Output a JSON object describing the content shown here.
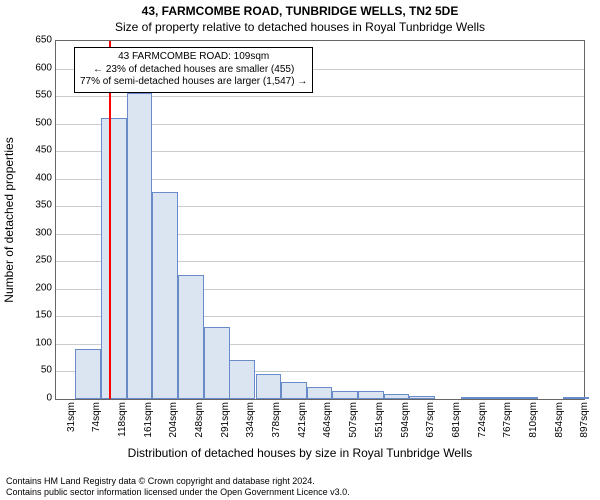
{
  "title_line1": "43, FARMCOMBE ROAD, TUNBRIDGE WELLS, TN2 5DE",
  "title_line2": "Size of property relative to detached houses in Royal Tunbridge Wells",
  "ylabel": "Number of detached properties",
  "xlabel": "Distribution of detached houses by size in Royal Tunbridge Wells",
  "footer_line1": "Contains HM Land Registry data © Crown copyright and database right 2024.",
  "footer_line2": "Contains public sector information licensed under the Open Government Licence v3.0.",
  "chart": {
    "type": "bar",
    "bar_fill": "#dbe5f1",
    "bar_stroke": "#6a8bc9",
    "grid_color": "#cccccc",
    "axis_color": "#666666",
    "background": "#ffffff",
    "marker_color": "#ff0000",
    "marker_x_value": 109,
    "x_min": 20,
    "x_max": 910,
    "ylim": [
      0,
      650
    ],
    "yticks": [
      0,
      50,
      100,
      150,
      200,
      250,
      300,
      350,
      400,
      450,
      500,
      550,
      600,
      650
    ],
    "xtick_labels": [
      "31sqm",
      "74sqm",
      "118sqm",
      "161sqm",
      "204sqm",
      "248sqm",
      "291sqm",
      "334sqm",
      "378sqm",
      "421sqm",
      "464sqm",
      "507sqm",
      "551sqm",
      "594sqm",
      "637sqm",
      "681sqm",
      "724sqm",
      "767sqm",
      "810sqm",
      "854sqm",
      "897sqm"
    ],
    "bin_width_data": 43.3,
    "bars": [
      {
        "x_center": 31,
        "value": 0
      },
      {
        "x_center": 74,
        "value": 90
      },
      {
        "x_center": 118,
        "value": 510
      },
      {
        "x_center": 161,
        "value": 555
      },
      {
        "x_center": 204,
        "value": 375
      },
      {
        "x_center": 248,
        "value": 225
      },
      {
        "x_center": 291,
        "value": 130
      },
      {
        "x_center": 334,
        "value": 70
      },
      {
        "x_center": 378,
        "value": 45
      },
      {
        "x_center": 421,
        "value": 30
      },
      {
        "x_center": 464,
        "value": 22
      },
      {
        "x_center": 507,
        "value": 15
      },
      {
        "x_center": 551,
        "value": 15
      },
      {
        "x_center": 594,
        "value": 10
      },
      {
        "x_center": 637,
        "value": 5
      },
      {
        "x_center": 681,
        "value": 0
      },
      {
        "x_center": 724,
        "value": 2
      },
      {
        "x_center": 767,
        "value": 2
      },
      {
        "x_center": 810,
        "value": 2
      },
      {
        "x_center": 854,
        "value": 0
      },
      {
        "x_center": 897,
        "value": 2
      }
    ],
    "title_fontsize": 12,
    "label_fontsize": 12,
    "tick_fontsize": 10,
    "footer_fontsize": 9,
    "annot_fontsize": 10
  },
  "annotation": {
    "line1": "43 FARMCOMBE ROAD: 109sqm",
    "line2": "← 23% of detached houses are smaller (455)",
    "line3": "77% of semi-detached houses are larger (1,547) →",
    "box_border": "#000000",
    "box_bg": "#ffffff"
  }
}
